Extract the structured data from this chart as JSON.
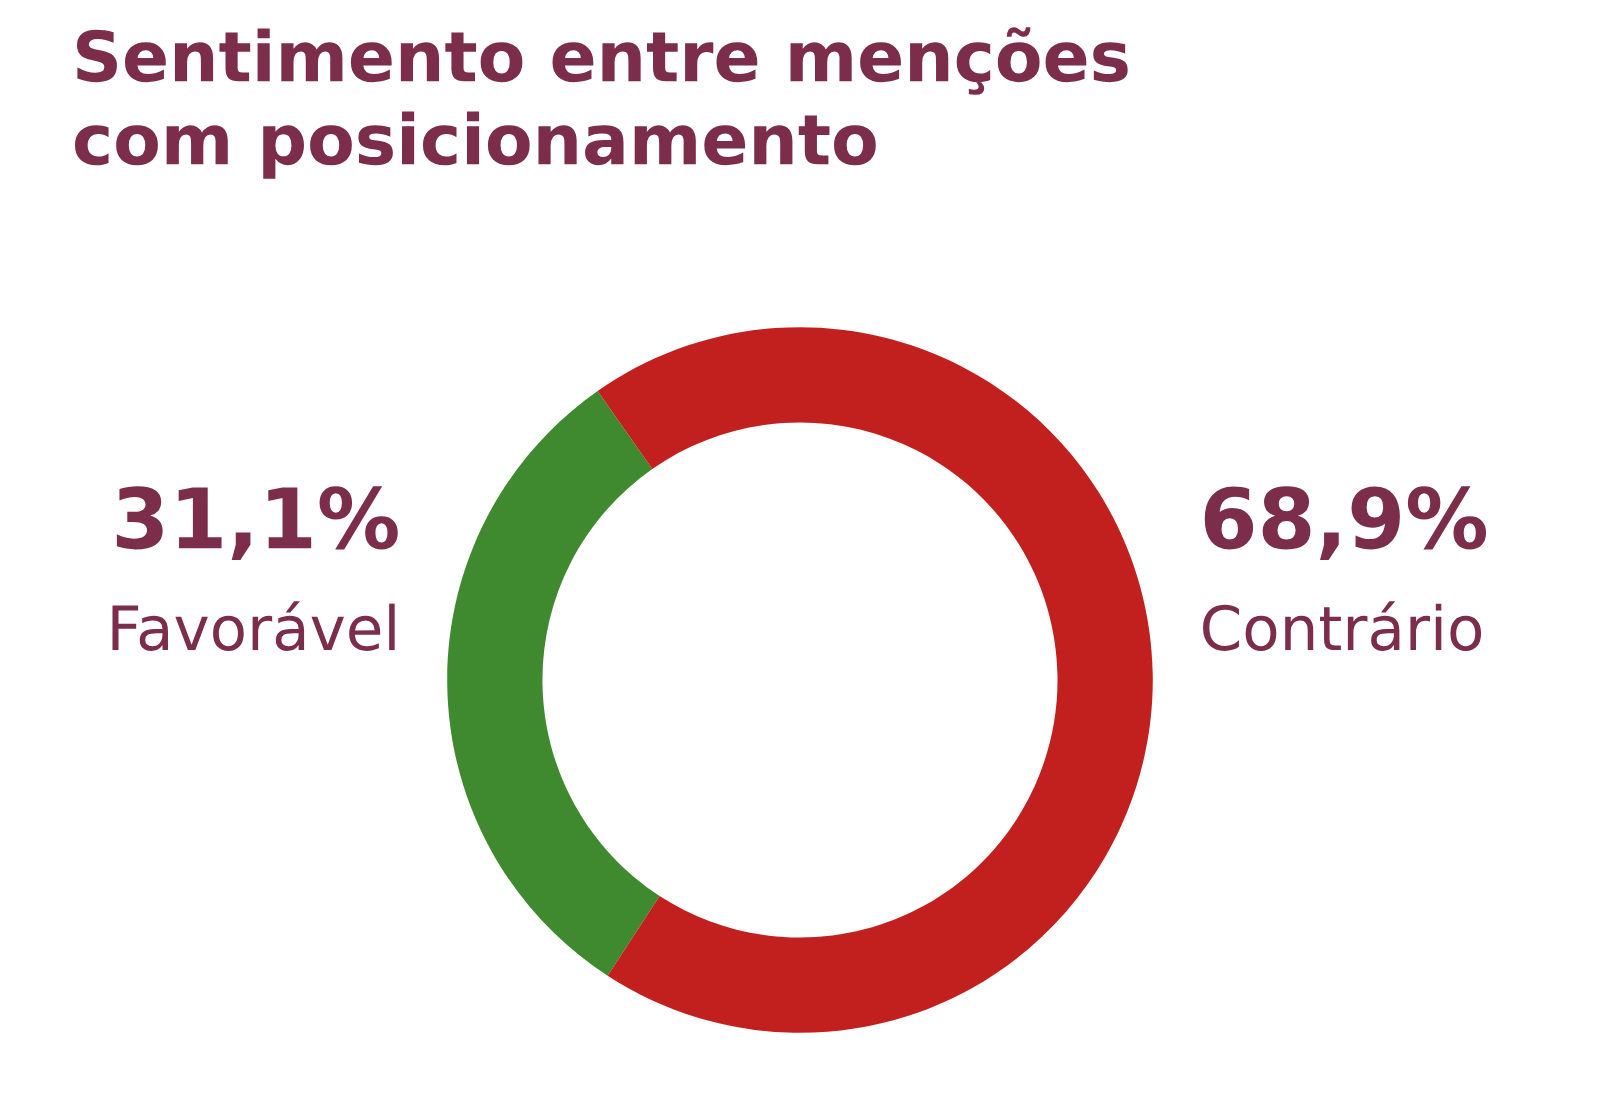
{
  "chart_data": {
    "type": "donut",
    "title": "Sentimento entre menções com posicionamento",
    "categories": [
      "Favorável",
      "Contrário"
    ],
    "values": [
      31.1,
      68.9
    ],
    "value_labels": [
      "31,1%",
      "68,9%"
    ],
    "colors": [
      "#3f8a2e",
      "#c2201f"
    ],
    "legend": false
  }
}
